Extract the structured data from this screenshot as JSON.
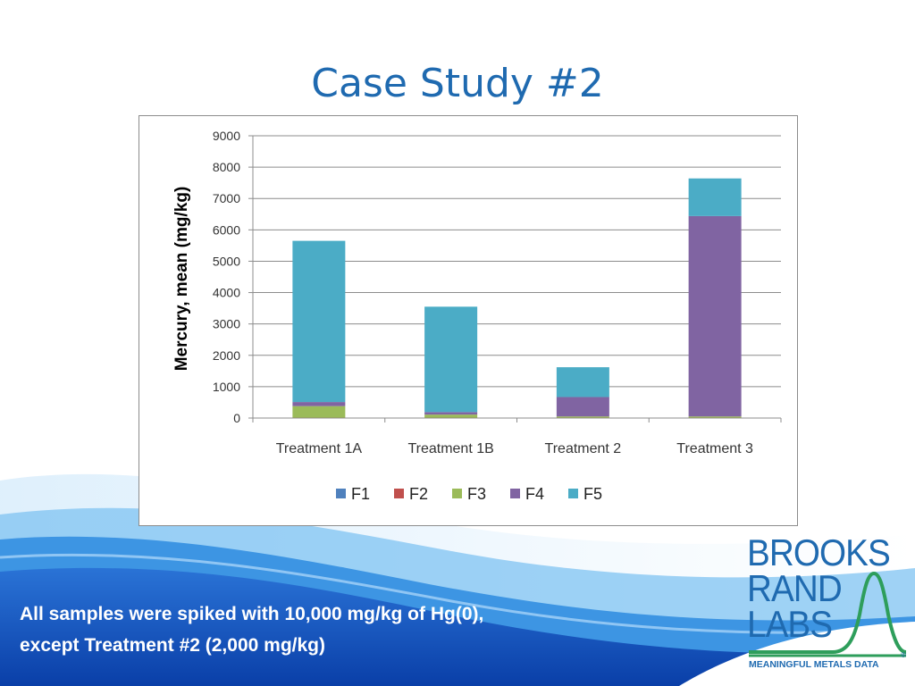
{
  "slide": {
    "title": "Case Study #2",
    "caption_line1": "All samples were spiked with 10,000 mg/kg of Hg(0),",
    "caption_line2": "except Treatment #2 (2,000 mg/kg)"
  },
  "logo": {
    "line1": "BROOKS",
    "line2": "RAND",
    "line3": "LABS",
    "tagline": "MEANINGFUL METALS DATA",
    "registered": "®"
  },
  "colors": {
    "title": "#1f6ab0",
    "F1": "#4f81bd",
    "F2": "#c0504d",
    "F3": "#9bbb59",
    "F4": "#8064a2",
    "F5": "#4bacc6"
  },
  "chart_data": {
    "type": "bar",
    "stacked": true,
    "categories": [
      "Treatment 1A",
      "Treatment 1B",
      "Treatment 2",
      "Treatment 3"
    ],
    "series": [
      {
        "name": "F1",
        "values": [
          5,
          5,
          5,
          5
        ]
      },
      {
        "name": "F2",
        "values": [
          5,
          5,
          5,
          5
        ]
      },
      {
        "name": "F3",
        "values": [
          370,
          100,
          40,
          40
        ]
      },
      {
        "name": "F4",
        "values": [
          130,
          80,
          620,
          6390
        ]
      },
      {
        "name": "F5",
        "values": [
          5140,
          3360,
          950,
          1200
        ]
      }
    ],
    "ylabel": "Mercury, mean (mg/kg)",
    "xlabel": "",
    "ylim": [
      0,
      9000
    ],
    "yticks": [
      "0",
      "1000",
      "2000",
      "3000",
      "4000",
      "5000",
      "6000",
      "7000",
      "8000",
      "9000"
    ],
    "grid": true,
    "legend": "bottom"
  }
}
